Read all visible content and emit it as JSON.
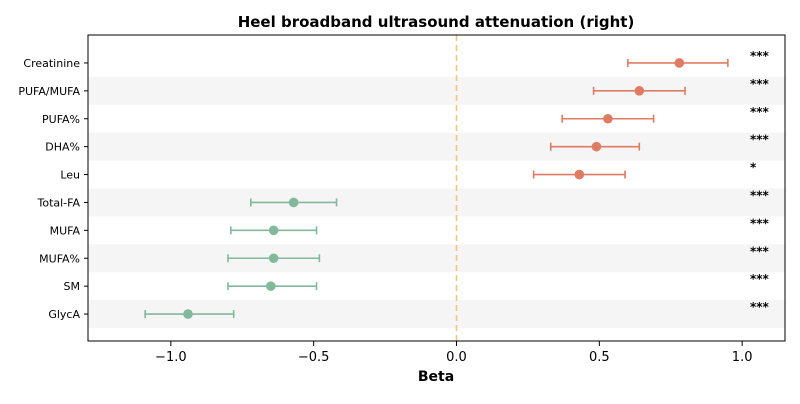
{
  "chart_data": {
    "type": "forest",
    "title": "Heel broadband ultrasound attenuation (right)",
    "xlabel": "Beta",
    "xlim": [
      -1.29,
      1.15
    ],
    "xticks": [
      {
        "value": -1.0,
        "label": "−1.0"
      },
      {
        "value": -0.5,
        "label": "−0.5"
      },
      {
        "value": 0.0,
        "label": "0.0"
      },
      {
        "value": 0.5,
        "label": "0.5"
      },
      {
        "value": 1.0,
        "label": "1.0"
      }
    ],
    "reference_line": 0.0,
    "colors": {
      "positive": "#e07b63",
      "negative": "#82b99b",
      "reference": "#f2c47e",
      "band": "#f5f5f5"
    },
    "rows": [
      {
        "label": "Creatinine",
        "beta": 0.78,
        "lo": 0.6,
        "hi": 0.95,
        "significance": "***"
      },
      {
        "label": "PUFA/MUFA",
        "beta": 0.64,
        "lo": 0.48,
        "hi": 0.8,
        "significance": "***"
      },
      {
        "label": "PUFA%",
        "beta": 0.53,
        "lo": 0.37,
        "hi": 0.69,
        "significance": "***"
      },
      {
        "label": "DHA%",
        "beta": 0.49,
        "lo": 0.33,
        "hi": 0.64,
        "significance": "***"
      },
      {
        "label": "Leu",
        "beta": 0.43,
        "lo": 0.27,
        "hi": 0.59,
        "significance": "*"
      },
      {
        "label": "Total-FA",
        "beta": -0.57,
        "lo": -0.72,
        "hi": -0.42,
        "significance": "***"
      },
      {
        "label": "MUFA",
        "beta": -0.64,
        "lo": -0.79,
        "hi": -0.49,
        "significance": "***"
      },
      {
        "label": "MUFA%",
        "beta": -0.64,
        "lo": -0.8,
        "hi": -0.48,
        "significance": "***"
      },
      {
        "label": "SM",
        "beta": -0.65,
        "lo": -0.8,
        "hi": -0.49,
        "significance": "***"
      },
      {
        "label": "GlycA",
        "beta": -0.94,
        "lo": -1.09,
        "hi": -0.78,
        "significance": "***"
      }
    ]
  }
}
